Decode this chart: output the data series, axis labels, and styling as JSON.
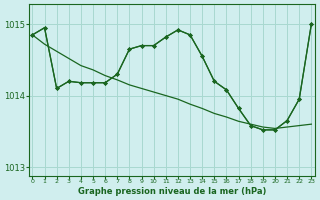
{
  "title": "Graphe pression niveau de la mer (hPa)",
  "bg_color": "#d0eeee",
  "grid_color": "#a8d8d0",
  "line_color": "#1a6620",
  "xlim": [
    -0.3,
    23.3
  ],
  "ylim": [
    1012.88,
    1015.28
  ],
  "yticks": [
    1013,
    1014,
    1015
  ],
  "xticks": [
    0,
    1,
    2,
    3,
    4,
    5,
    6,
    7,
    8,
    9,
    10,
    11,
    12,
    13,
    14,
    15,
    16,
    17,
    18,
    19,
    20,
    21,
    22,
    23
  ],
  "line1_x": [
    0,
    1,
    2,
    3,
    4,
    5,
    6,
    7,
    8,
    9,
    10,
    11,
    12,
    13,
    14,
    15,
    16,
    17,
    18,
    19,
    20,
    21,
    22,
    23
  ],
  "line1_y": [
    1014.85,
    1014.95,
    1014.1,
    1014.2,
    1014.18,
    1014.18,
    1014.18,
    1014.3,
    1014.65,
    1014.7,
    1014.7,
    1014.82,
    1014.92,
    1014.85,
    1014.55,
    1014.2,
    1014.08,
    1013.82,
    1013.58,
    1013.52,
    1013.52,
    1013.65,
    1013.95,
    1015.0
  ],
  "line2_x": [
    0,
    1,
    2,
    3,
    4,
    5,
    6,
    7,
    8,
    9,
    10,
    11,
    12,
    13,
    14,
    15,
    16,
    17,
    18,
    19,
    20,
    21,
    22,
    23
  ],
  "line2_y": [
    1014.85,
    1014.72,
    1014.62,
    1014.52,
    1014.42,
    1014.36,
    1014.28,
    1014.22,
    1014.15,
    1014.1,
    1014.05,
    1014.0,
    1013.95,
    1013.88,
    1013.82,
    1013.75,
    1013.7,
    1013.64,
    1013.6,
    1013.56,
    1013.54,
    1013.56,
    1013.58,
    1013.6
  ],
  "line3_x": [
    0,
    1,
    2,
    3,
    4,
    5,
    6,
    7,
    8,
    9,
    10,
    11,
    12,
    13,
    14,
    15,
    16,
    17,
    18,
    19,
    20,
    21,
    22,
    23
  ],
  "line3_y": [
    1014.85,
    1014.95,
    1014.1,
    1014.2,
    1014.18,
    1014.18,
    1014.18,
    1014.3,
    1014.65,
    1014.7,
    1014.7,
    1014.82,
    1014.92,
    1014.85,
    1014.55,
    1014.2,
    1014.08,
    1013.82,
    1013.58,
    1013.52,
    1013.52,
    1013.65,
    1013.95,
    1015.0
  ]
}
